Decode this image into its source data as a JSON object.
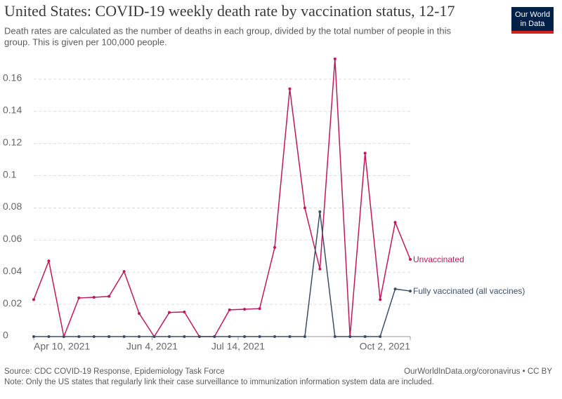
{
  "chart_data": {
    "type": "line",
    "title": "United States: COVID-19 weekly death rate by vaccination status, 12-17",
    "subtitle": [
      "Death rates are calculated as the number of deaths in each group, divided by the total number of people in this",
      "group. This is given per 100,000 people."
    ],
    "x": [
      "2021-04-10",
      "2021-04-17",
      "2021-04-24",
      "2021-05-01",
      "2021-05-08",
      "2021-05-15",
      "2021-05-22",
      "2021-05-29",
      "2021-06-05",
      "2021-06-12",
      "2021-06-19",
      "2021-06-26",
      "2021-07-03",
      "2021-07-10",
      "2021-07-17",
      "2021-07-24",
      "2021-07-31",
      "2021-08-07",
      "2021-08-14",
      "2021-08-21",
      "2021-08-28",
      "2021-09-04",
      "2021-09-11",
      "2021-09-18",
      "2021-09-25",
      "2021-10-02"
    ],
    "series": [
      {
        "name": "Unvaccinated",
        "color": "#c0185d",
        "values": [
          0.023,
          0.047,
          0,
          0.024,
          0.0244,
          0.025,
          0.0405,
          0.0144,
          0,
          0.015,
          0.0153,
          0,
          0,
          0.0166,
          0.017,
          0.0174,
          0.0554,
          0.154,
          0.08,
          0.042,
          0.1726,
          0,
          0.114,
          0.023,
          0.071,
          0.048
        ]
      },
      {
        "name": "Fully vaccinated (all vaccines)",
        "color": "#3c4e66",
        "values": [
          0,
          0,
          0,
          0,
          0,
          0,
          0,
          0,
          0,
          0,
          0,
          0,
          0,
          0,
          0,
          0,
          0,
          0,
          0,
          0.0776,
          0,
          0,
          0,
          0,
          0.0296,
          0.0283
        ]
      }
    ],
    "xlim": [
      "2021-04-10",
      "2021-10-02"
    ],
    "xticks": [
      {
        "value": "2021-04-10",
        "label": "Apr 10, 2021"
      },
      {
        "value": "2021-06-04",
        "label": "Jun 4, 2021"
      },
      {
        "value": "2021-07-14",
        "label": "Jul 14, 2021"
      },
      {
        "value": "2021-10-02",
        "label": "Oct 2, 2021"
      }
    ],
    "ylim": [
      0,
      0.18
    ],
    "yticks": [
      0,
      0.02,
      0.04,
      0.06,
      0.08,
      0.1,
      0.12,
      0.14,
      0.16
    ],
    "grid": true,
    "source": "Source: CDC COVID-19 Response, Epidemiology Task Force",
    "url": "OurWorldInData.org/coronavirus • CC BY",
    "note": "Note: Only the US states that regularly link their case surveillance to immunization information system data are included."
  },
  "logo": [
    "Our World",
    "in Data"
  ]
}
